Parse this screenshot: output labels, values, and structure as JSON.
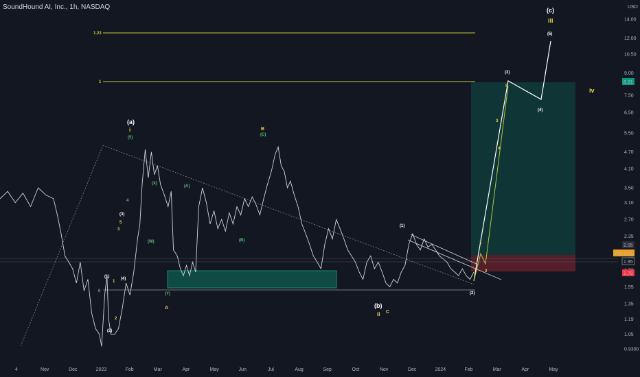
{
  "header": {
    "title": "SoundHound AI, Inc., 1h, NASDAQ"
  },
  "currency": "USD",
  "colors": {
    "background": "#131722",
    "price": "#d1d4dc",
    "fib_line": "#c9c93a",
    "wave_white": "#ffffff",
    "wave_yellow": "#f5d142",
    "wave_green": "#5fbf72",
    "target_zone": "#0f3b3a",
    "stop_zone": "#5c1f2b",
    "support_box": "#0f4a45",
    "badge_green": "#089981",
    "badge_red": "#f23645",
    "badge_orange": "#f0a020"
  },
  "chart_data": {
    "type": "line",
    "title": "SoundHound AI, Inc., 1h, NASDAQ",
    "y_scale": "log",
    "ylim": [
      0.9,
      15.5
    ],
    "y_ticks": [
      "14.00",
      "12.00",
      "10.50",
      "9.00",
      "7.50",
      "6.50",
      "5.50",
      "4.70",
      "4.10",
      "3.50",
      "3.10",
      "2.70",
      "2.35",
      "2.05",
      "1.95",
      "1.78",
      "1.55",
      "1.35",
      "1.19",
      "1.05",
      "0.9300"
    ],
    "x_ticks": [
      "4",
      "Nov",
      "Dec",
      "2023",
      "Feb",
      "Mar",
      "Apr",
      "May",
      "Jun",
      "Jul",
      "Aug",
      "Sep",
      "Oct",
      "Nov",
      "Dec",
      "2024",
      "Feb",
      "Mar",
      "Apr",
      "May"
    ],
    "price_path": [
      [
        0,
        3.2
      ],
      [
        1,
        3.4
      ],
      [
        2,
        3.1
      ],
      [
        3,
        3.35
      ],
      [
        4,
        3.0
      ],
      [
        5,
        3.5
      ],
      [
        6,
        3.3
      ],
      [
        7,
        3.2
      ],
      [
        7.5,
        2.8
      ],
      [
        8,
        2.4
      ],
      [
        8.5,
        2.0
      ],
      [
        9,
        1.9
      ],
      [
        9.5,
        1.8
      ],
      [
        10,
        1.6
      ],
      [
        10.5,
        1.9
      ],
      [
        11,
        1.5
      ],
      [
        11.5,
        1.65
      ],
      [
        12,
        1.25
      ],
      [
        12.5,
        1.1
      ],
      [
        13,
        1.05
      ],
      [
        13.3,
        0.95
      ],
      [
        13.7,
        1.45
      ],
      [
        14,
        1.7
      ],
      [
        14.2,
        1.2
      ],
      [
        14.5,
        1.05
      ],
      [
        15,
        1.05
      ],
      [
        15.5,
        1.1
      ],
      [
        16,
        1.3
      ],
      [
        16.5,
        1.6
      ],
      [
        17,
        1.45
      ],
      [
        17.5,
        1.75
      ],
      [
        18,
        2.3
      ],
      [
        18.3,
        2.6
      ],
      [
        18.6,
        3.6
      ],
      [
        19,
        4.8
      ],
      [
        19.4,
        3.8
      ],
      [
        19.8,
        4.7
      ],
      [
        20.2,
        3.9
      ],
      [
        20.6,
        4.2
      ],
      [
        21,
        3.6
      ],
      [
        21.5,
        3.3
      ],
      [
        22,
        3.0
      ],
      [
        22.4,
        3.4
      ],
      [
        22.7,
        2.1
      ],
      [
        23.2,
        2.0
      ],
      [
        23.6,
        1.8
      ],
      [
        24,
        1.7
      ],
      [
        24.4,
        1.85
      ],
      [
        24.8,
        1.7
      ],
      [
        25.2,
        1.9
      ],
      [
        25.6,
        1.75
      ],
      [
        26,
        3.0
      ],
      [
        26.5,
        3.5
      ],
      [
        27,
        3.1
      ],
      [
        27.5,
        2.6
      ],
      [
        28,
        2.9
      ],
      [
        28.5,
        2.5
      ],
      [
        29,
        2.7
      ],
      [
        29.5,
        2.45
      ],
      [
        30,
        2.85
      ],
      [
        30.5,
        2.6
      ],
      [
        31,
        3.0
      ],
      [
        31.5,
        2.8
      ],
      [
        32,
        3.2
      ],
      [
        32.5,
        3.0
      ],
      [
        33,
        3.25
      ],
      [
        33.5,
        3.05
      ],
      [
        34,
        2.8
      ],
      [
        34.5,
        3.2
      ],
      [
        35,
        3.6
      ],
      [
        35.5,
        4.0
      ],
      [
        36,
        4.6
      ],
      [
        36.4,
        4.9
      ],
      [
        36.8,
        4.2
      ],
      [
        37.2,
        4.0
      ],
      [
        37.6,
        3.5
      ],
      [
        38,
        3.7
      ],
      [
        38.5,
        3.3
      ],
      [
        39,
        3.0
      ],
      [
        39.5,
        2.6
      ],
      [
        40,
        2.4
      ],
      [
        40.5,
        2.2
      ],
      [
        41,
        2.0
      ],
      [
        41.5,
        1.9
      ],
      [
        42,
        1.8
      ],
      [
        42.5,
        2.2
      ],
      [
        43,
        2.5
      ],
      [
        43.5,
        2.3
      ],
      [
        44,
        2.7
      ],
      [
        44.5,
        2.5
      ],
      [
        45,
        2.3
      ],
      [
        45.5,
        2.1
      ],
      [
        46,
        2.0
      ],
      [
        46.5,
        1.9
      ],
      [
        47,
        1.75
      ],
      [
        47.5,
        1.65
      ],
      [
        48,
        1.9
      ],
      [
        48.5,
        2.0
      ],
      [
        49,
        1.8
      ],
      [
        49.5,
        1.9
      ],
      [
        50,
        1.75
      ],
      [
        50.5,
        1.6
      ],
      [
        51,
        1.55
      ],
      [
        51.5,
        1.65
      ],
      [
        52,
        1.6
      ],
      [
        52.5,
        1.75
      ],
      [
        53,
        1.85
      ],
      [
        53.5,
        2.2
      ],
      [
        54,
        2.4
      ],
      [
        54.5,
        2.2
      ],
      [
        55,
        2.1
      ],
      [
        55.5,
        2.3
      ],
      [
        56,
        2.15
      ],
      [
        56.5,
        2.2
      ],
      [
        57,
        2.1
      ],
      [
        57.5,
        2.0
      ],
      [
        58,
        1.95
      ],
      [
        58.5,
        1.9
      ],
      [
        59,
        1.8
      ],
      [
        59.5,
        1.75
      ],
      [
        60,
        1.7
      ],
      [
        60.5,
        1.8
      ],
      [
        61,
        1.7
      ],
      [
        61.5,
        1.65
      ],
      [
        62,
        1.75
      ]
    ],
    "annotations": [
      "(a)",
      "i",
      "(5)",
      "(3)",
      "5",
      "3",
      "(4)",
      "4",
      "1",
      "(1)",
      "2",
      "(2)",
      "0",
      "(W)",
      "(X)",
      "(Y)",
      "(A)",
      "(B)",
      "(C)",
      "B",
      "A",
      "(b)",
      "ii",
      "C",
      "(1)",
      "(2)",
      "(3)",
      "(4)",
      "(5)",
      "(c)",
      "iii",
      "iv",
      "3",
      "4",
      "5",
      "2",
      "1",
      "1.23",
      "1"
    ],
    "price_badges": [
      "8.31",
      "2.05",
      "2.01",
      "1.95",
      "1.78"
    ],
    "badge_label": "Pre"
  }
}
